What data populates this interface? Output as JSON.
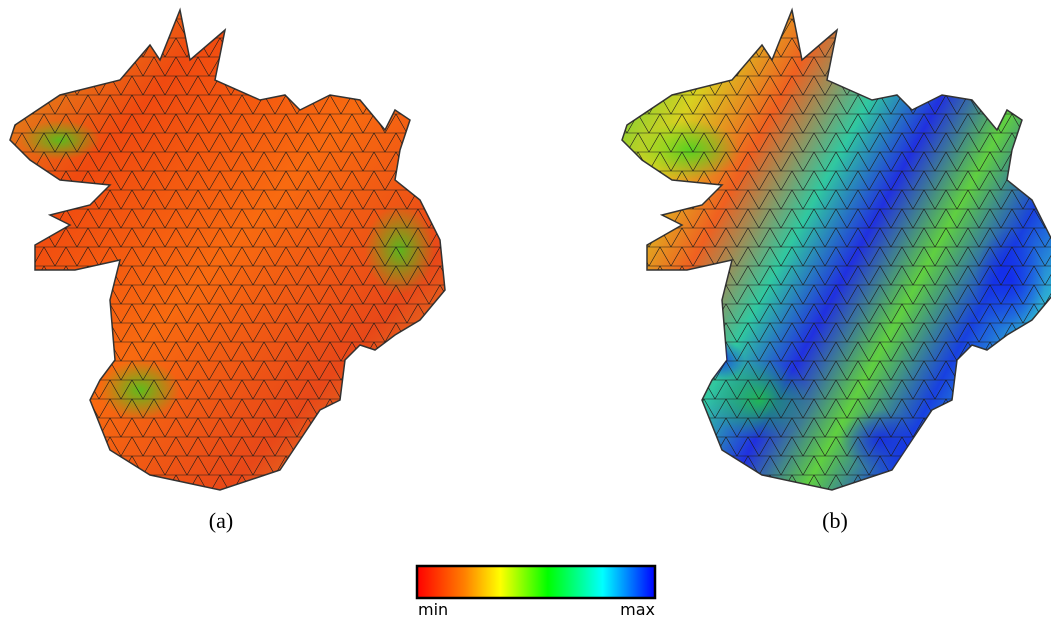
{
  "panels": [
    {
      "caption": "(a)"
    },
    {
      "caption": "(b)"
    }
  ],
  "colorbar": {
    "min_label": "min",
    "max_label": "max"
  }
}
